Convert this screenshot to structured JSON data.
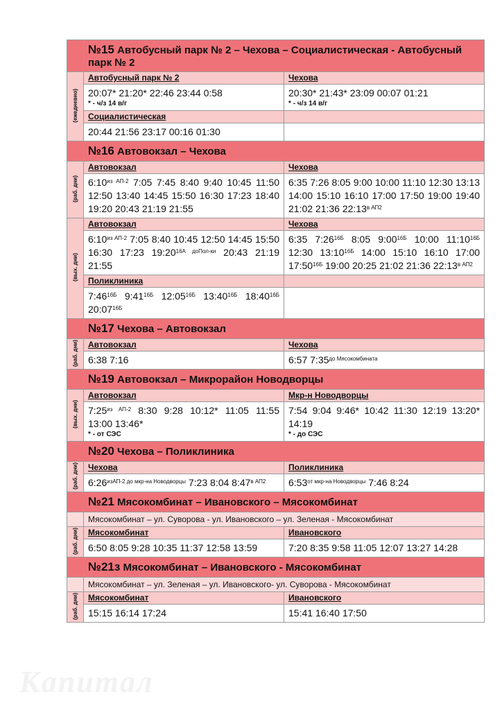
{
  "routes": [
    {
      "number": "№15",
      "name": "Автобусный парк № 2 – Чехова – Социалистическая - Автобусный парк № 2",
      "blocks": [
        {
          "day": "(ежедневно)",
          "rows": [
            [
              {
                "stop": "Автобусный парк № 2",
                "times": [
                  "20:07* 21:20* 22:46 23:44 0:58"
                ],
                "note": "* - ч/з 14 в/г"
              },
              {
                "stop": "Чехова",
                "times": [
                  "20:30* 21:43* 23:09 00:07 01:21"
                ],
                "note": "* - ч/з 14 в/г"
              }
            ],
            [
              {
                "stop": "Социалистическая",
                "times": [
                  "20:44 21:56 23:17 00:16 01:30"
                ]
              },
              null
            ]
          ]
        }
      ]
    },
    {
      "number": "№16",
      "name": "Автовокзал – Чехова",
      "blocks": [
        {
          "day": "(раб. дни)",
          "rows": [
            [
              {
                "stop": "Автовокзал",
                "times": [
                  [
                    "6:10",
                    "из АП-2"
                  ],
                  "7:05 7:45 8:40 9:40 10:45 11:50 12:50 13:40 14:45 15:50 16:30 17:23 18:40 19:20 20:43 21:19 21:55"
                ]
              },
              {
                "stop": "Чехова",
                "times": [
                  "6:35 7:26 8:05 9:00 10:00 11:10 12:30 13:13 14:00 15:10 16:10 17:00 17:50 19:00 19:40 21:02 21:36",
                  [
                    "22:13",
                    "в АП2"
                  ]
                ]
              }
            ]
          ]
        },
        {
          "day": "(вых. дни)",
          "rows": [
            [
              {
                "stop": "Автовокзал",
                "times": [
                  [
                    "6:10",
                    "из АП-2"
                  ],
                  "7:05 8:40 10:45 12:50 14:45 15:50 16:30 17:23",
                  [
                    "19:20",
                    "16А доПол-ки"
                  ],
                  "20:43 21:19 21:55"
                ]
              },
              {
                "stop": "Чехова",
                "times": [
                  "6:35",
                  [
                    "7:26",
                    "16Б"
                  ],
                  "8:05",
                  [
                    "9:00",
                    "16Б"
                  ],
                  "10:00",
                  [
                    "11:10",
                    "16Б"
                  ],
                  "12:30",
                  [
                    "13:10",
                    "16Б"
                  ],
                  "14:00 15:10 16:10 17:00",
                  [
                    "17:50",
                    "16Б"
                  ],
                  "19:00 20:25 21:02 21:36",
                  [
                    "22:13",
                    "в АП2"
                  ]
                ]
              }
            ],
            [
              {
                "stop": "Поликлиника",
                "times": [
                  [
                    "7:46",
                    "16Б"
                  ],
                  [
                    "9:41",
                    "16Б"
                  ],
                  [
                    "12:05",
                    "16Б"
                  ],
                  [
                    "13:40",
                    "16Б"
                  ],
                  [
                    "18:40",
                    "16Б"
                  ],
                  [
                    "20:07",
                    "16Б"
                  ]
                ]
              },
              null
            ]
          ]
        }
      ]
    },
    {
      "number": "№17",
      "name": "Чехова – Автовокзал",
      "blocks": [
        {
          "day": "(раб. дни)",
          "rows": [
            [
              {
                "stop": "Автовокзал",
                "times": [
                  "6:38 7:16"
                ]
              },
              {
                "stop": "Чехова",
                "times": [
                  "6:57",
                  [
                    "7:35",
                    "до Мясокомбината"
                  ]
                ]
              }
            ]
          ]
        }
      ]
    },
    {
      "number": "№19",
      "name": "Автовокзал – Микрорайон Новодворцы",
      "blocks": [
        {
          "day": "(вых. дни)",
          "rows": [
            [
              {
                "stop": "Автовокзал",
                "times": [
                  [
                    "7:25",
                    "из АП-2"
                  ],
                  "8:30 9:28 10:12* 11:05 11:55 13:00 13:46*"
                ],
                "note": "* - от СЭС"
              },
              {
                "stop": "Мкр-н Новодворцы",
                "times": [
                  "7:54 9:04 9:46* 10:42 11:30 12:19 13:20* 14:19"
                ],
                "note": "* - до СЭС"
              }
            ]
          ]
        }
      ]
    },
    {
      "number": "№20",
      "name": "Чехова – Поликлиника",
      "blocks": [
        {
          "day": "(раб. дни)",
          "rows": [
            [
              {
                "stop": "Чехова",
                "times": [
                  [
                    "6:26",
                    "изАП-2 до мкр-на Новодворцы"
                  ],
                  "7:23 8:04",
                  [
                    "8:47",
                    "в АП2"
                  ]
                ]
              },
              {
                "stop": "Поликлиника",
                "times": [
                  [
                    "6:53",
                    "от мкр-на Новодворцы"
                  ],
                  "7:46 8:24"
                ]
              }
            ]
          ]
        }
      ]
    },
    {
      "number": "№21",
      "name": "Мясокомбинат – Ивановского – Мясокомбинат",
      "description": "Мясокомбинат – ул. Суворова - ул. Ивановского – ул. Зеленая - Мясокомбинат",
      "blocks": [
        {
          "day": "(раб. дни)",
          "rows": [
            [
              {
                "stop": "Мясокомбинат",
                "times": [
                  "6:50 8:05 9:28 10:35 11:37 12:58 13:59"
                ]
              },
              {
                "stop": "Ивановского",
                "times": [
                  "7:20 8:35 9:58 11:05 12:07 13:27 14:28"
                ]
              }
            ]
          ]
        }
      ]
    },
    {
      "number": "№21з",
      "name": "Мясокомбинат – Ивановского - Мясокомбинат",
      "description": "Мясокомбинат – ул. Зеленая – ул. Ивановского- ул. Суворова - Мясокомбинат",
      "blocks": [
        {
          "day": "(раб. дни)",
          "rows": [
            [
              {
                "stop": "Мясокомбинат",
                "times": [
                  "15:15 16:14 17:24"
                ]
              },
              {
                "stop": "Ивановского",
                "times": [
                  "15:41 16:40 17:50"
                ]
              }
            ]
          ]
        }
      ]
    }
  ],
  "watermark": "Капитал"
}
